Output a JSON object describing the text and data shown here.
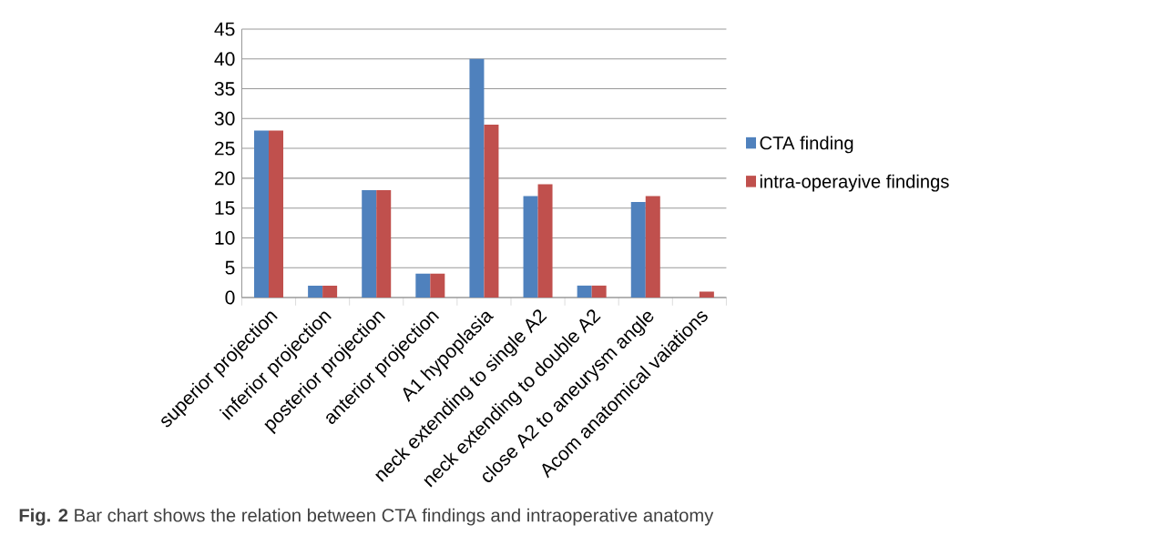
{
  "chart_data": {
    "type": "bar",
    "categories": [
      "superior projection",
      "inferior projection",
      "posterior projection",
      "anterior projection",
      "A1 hypoplasia",
      "neck extending to single A2",
      "neck extending to double A2",
      "close A2 to aneurysm angle",
      "Acom anatomical vaiations"
    ],
    "series": [
      {
        "name": "CTA finding",
        "color": "#4f81bd",
        "values": [
          28,
          2,
          18,
          4,
          40,
          17,
          2,
          16,
          0
        ]
      },
      {
        "name": "intra-operayive findings",
        "color": "#c0504d",
        "values": [
          28,
          2,
          18,
          4,
          29,
          19,
          2,
          17,
          1
        ]
      }
    ],
    "ylim": [
      0,
      45
    ],
    "yticks": [
      0,
      5,
      10,
      15,
      20,
      25,
      30,
      35,
      40,
      45
    ],
    "grid": "y",
    "legend": "right",
    "annotations": [
      "**Fig. 2** Bar chart shows the relation between CTA findings and intraoperative anatomy"
    ]
  }
}
